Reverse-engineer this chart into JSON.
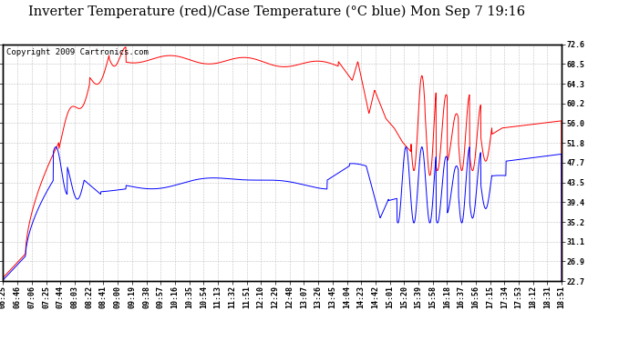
{
  "title": "Inverter Temperature (red)/Case Temperature (°C blue) Mon Sep 7 19:16",
  "copyright": "Copyright 2009 Cartronics.com",
  "ylim": [
    22.7,
    72.6
  ],
  "yticks": [
    22.7,
    26.9,
    31.1,
    35.2,
    39.4,
    43.5,
    47.7,
    51.8,
    56.0,
    60.2,
    64.3,
    68.5,
    72.6
  ],
  "xlabel_times": [
    "06:25",
    "06:46",
    "07:06",
    "07:25",
    "07:44",
    "08:03",
    "08:22",
    "08:41",
    "09:00",
    "09:19",
    "09:38",
    "09:57",
    "10:16",
    "10:35",
    "10:54",
    "11:13",
    "11:32",
    "11:51",
    "12:10",
    "12:29",
    "12:48",
    "13:07",
    "13:26",
    "13:45",
    "14:04",
    "14:23",
    "14:42",
    "15:01",
    "15:20",
    "15:39",
    "15:58",
    "16:18",
    "16:37",
    "16:56",
    "17:15",
    "17:34",
    "17:53",
    "18:12",
    "18:31",
    "18:51"
  ],
  "background_color": "#ffffff",
  "plot_bg_color": "#ffffff",
  "grid_color": "#bbbbbb",
  "red_color": "#ff0000",
  "blue_color": "#0000ff",
  "title_fontsize": 10.5,
  "tick_fontsize": 6.0,
  "copyright_fontsize": 6.5,
  "fig_width": 6.9,
  "fig_height": 3.75,
  "fig_dpi": 100
}
